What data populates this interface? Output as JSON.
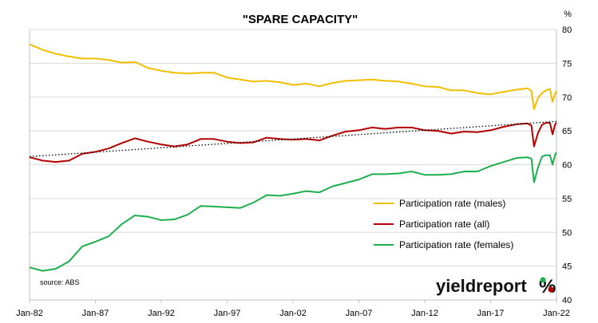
{
  "chart_data": {
    "type": "line",
    "title": "\"SPARE CAPACITY\"",
    "ylabel": "%",
    "xlabel": "",
    "ylim": [
      40,
      80
    ],
    "xlim": [
      1982.0,
      2022.0
    ],
    "y_ticks": [
      "40",
      "45",
      "50",
      "55",
      "60",
      "65",
      "70",
      "75",
      "80"
    ],
    "x_ticks": [
      {
        "label": "Jan-82",
        "x": 1982
      },
      {
        "label": "Jan-87",
        "x": 1987
      },
      {
        "label": "Jan-92",
        "x": 1992
      },
      {
        "label": "Jan-97",
        "x": 1997
      },
      {
        "label": "Jan-02",
        "x": 2002
      },
      {
        "label": "Jan-07",
        "x": 2007
      },
      {
        "label": "Jan-12",
        "x": 2012
      },
      {
        "label": "Jan-17",
        "x": 2017
      },
      {
        "label": "Jan-22",
        "x": 2022
      }
    ],
    "grid": "horizontal",
    "legend_position": "center-right",
    "series": [
      {
        "name": "Participation rate (males)",
        "color": "#F2BE00",
        "points": [
          [
            1982.0,
            77.8
          ],
          [
            1983.0,
            77.0
          ],
          [
            1984.0,
            76.4
          ],
          [
            1985.0,
            76.0
          ],
          [
            1986.0,
            75.7
          ],
          [
            1987.0,
            75.7
          ],
          [
            1988.0,
            75.5
          ],
          [
            1989.0,
            75.1
          ],
          [
            1990.0,
            75.2
          ],
          [
            1991.0,
            74.3
          ],
          [
            1992.0,
            73.9
          ],
          [
            1993.0,
            73.6
          ],
          [
            1994.0,
            73.5
          ],
          [
            1995.0,
            73.6
          ],
          [
            1996.0,
            73.6
          ],
          [
            1997.0,
            72.9
          ],
          [
            1998.0,
            72.6
          ],
          [
            1999.0,
            72.3
          ],
          [
            2000.0,
            72.4
          ],
          [
            2001.0,
            72.2
          ],
          [
            2002.0,
            71.8
          ],
          [
            2003.0,
            72.0
          ],
          [
            2004.0,
            71.6
          ],
          [
            2005.0,
            72.1
          ],
          [
            2006.0,
            72.4
          ],
          [
            2007.0,
            72.5
          ],
          [
            2008.0,
            72.6
          ],
          [
            2009.0,
            72.4
          ],
          [
            2010.0,
            72.3
          ],
          [
            2011.0,
            72.0
          ],
          [
            2012.0,
            71.6
          ],
          [
            2013.0,
            71.5
          ],
          [
            2014.0,
            71.0
          ],
          [
            2015.0,
            71.0
          ],
          [
            2016.0,
            70.6
          ],
          [
            2017.0,
            70.4
          ],
          [
            2018.0,
            70.8
          ],
          [
            2019.0,
            71.1
          ],
          [
            2019.8,
            71.3
          ],
          [
            2020.1,
            70.9
          ],
          [
            2020.3,
            68.2
          ],
          [
            2020.6,
            69.9
          ],
          [
            2020.9,
            70.6
          ],
          [
            2021.2,
            71.0
          ],
          [
            2021.5,
            71.2
          ],
          [
            2021.7,
            69.3
          ],
          [
            2021.9,
            70.5
          ],
          [
            2022.0,
            70.9
          ]
        ]
      },
      {
        "name": "Participation rate (all)",
        "color": "#B40000",
        "points": [
          [
            1982.0,
            61.1
          ],
          [
            1983.0,
            60.6
          ],
          [
            1984.0,
            60.4
          ],
          [
            1985.0,
            60.6
          ],
          [
            1986.0,
            61.6
          ],
          [
            1987.0,
            61.9
          ],
          [
            1988.0,
            62.4
          ],
          [
            1989.0,
            63.2
          ],
          [
            1990.0,
            63.9
          ],
          [
            1991.0,
            63.4
          ],
          [
            1992.0,
            63.0
          ],
          [
            1993.0,
            62.7
          ],
          [
            1994.0,
            63.0
          ],
          [
            1995.0,
            63.8
          ],
          [
            1996.0,
            63.8
          ],
          [
            1997.0,
            63.4
          ],
          [
            1998.0,
            63.2
          ],
          [
            1999.0,
            63.3
          ],
          [
            2000.0,
            64.0
          ],
          [
            2001.0,
            63.8
          ],
          [
            2002.0,
            63.7
          ],
          [
            2003.0,
            63.8
          ],
          [
            2004.0,
            63.6
          ],
          [
            2005.0,
            64.3
          ],
          [
            2006.0,
            64.9
          ],
          [
            2007.0,
            65.1
          ],
          [
            2008.0,
            65.5
          ],
          [
            2009.0,
            65.3
          ],
          [
            2010.0,
            65.5
          ],
          [
            2011.0,
            65.5
          ],
          [
            2012.0,
            65.1
          ],
          [
            2013.0,
            65.0
          ],
          [
            2014.0,
            64.6
          ],
          [
            2015.0,
            64.9
          ],
          [
            2016.0,
            64.8
          ],
          [
            2017.0,
            65.1
          ],
          [
            2018.0,
            65.6
          ],
          [
            2019.0,
            66.0
          ],
          [
            2019.8,
            66.1
          ],
          [
            2020.1,
            65.8
          ],
          [
            2020.3,
            62.7
          ],
          [
            2020.6,
            64.7
          ],
          [
            2020.9,
            65.9
          ],
          [
            2021.2,
            66.2
          ],
          [
            2021.5,
            66.2
          ],
          [
            2021.7,
            64.5
          ],
          [
            2021.9,
            66.0
          ],
          [
            2022.0,
            66.2
          ]
        ]
      },
      {
        "name": "Participation rate (females)",
        "color": "#1DAF4E",
        "points": [
          [
            1982.0,
            44.8
          ],
          [
            1983.0,
            44.3
          ],
          [
            1984.0,
            44.6
          ],
          [
            1985.0,
            45.7
          ],
          [
            1986.0,
            47.9
          ],
          [
            1987.0,
            48.6
          ],
          [
            1988.0,
            49.4
          ],
          [
            1989.0,
            51.2
          ],
          [
            1990.0,
            52.5
          ],
          [
            1991.0,
            52.3
          ],
          [
            1992.0,
            51.8
          ],
          [
            1993.0,
            51.9
          ],
          [
            1994.0,
            52.6
          ],
          [
            1995.0,
            53.9
          ],
          [
            1996.0,
            53.8
          ],
          [
            1997.0,
            53.7
          ],
          [
            1998.0,
            53.6
          ],
          [
            1999.0,
            54.4
          ],
          [
            2000.0,
            55.5
          ],
          [
            2001.0,
            55.4
          ],
          [
            2002.0,
            55.7
          ],
          [
            2003.0,
            56.1
          ],
          [
            2004.0,
            55.9
          ],
          [
            2005.0,
            56.8
          ],
          [
            2006.0,
            57.3
          ],
          [
            2007.0,
            57.8
          ],
          [
            2008.0,
            58.6
          ],
          [
            2009.0,
            58.6
          ],
          [
            2010.0,
            58.7
          ],
          [
            2011.0,
            59.0
          ],
          [
            2012.0,
            58.5
          ],
          [
            2013.0,
            58.5
          ],
          [
            2014.0,
            58.6
          ],
          [
            2015.0,
            59.0
          ],
          [
            2016.0,
            59.0
          ],
          [
            2017.0,
            59.8
          ],
          [
            2018.0,
            60.4
          ],
          [
            2019.0,
            61.0
          ],
          [
            2019.8,
            61.1
          ],
          [
            2020.1,
            60.9
          ],
          [
            2020.3,
            57.4
          ],
          [
            2020.6,
            59.6
          ],
          [
            2020.9,
            61.2
          ],
          [
            2021.2,
            61.4
          ],
          [
            2021.5,
            61.4
          ],
          [
            2021.7,
            60.0
          ],
          [
            2021.9,
            61.5
          ],
          [
            2022.0,
            61.8
          ]
        ]
      }
    ],
    "trendline": {
      "series": "Participation rate (all)",
      "style": "dotted",
      "color": "#000000",
      "points": [
        [
          1982.0,
          61.2
        ],
        [
          2022.0,
          66.4
        ]
      ]
    }
  },
  "source_text": "source: ABS",
  "brand": {
    "word": "yieldreport",
    "symbol": "%",
    "symbol_colors": [
      "#1DAF4E",
      "#B40000"
    ]
  }
}
